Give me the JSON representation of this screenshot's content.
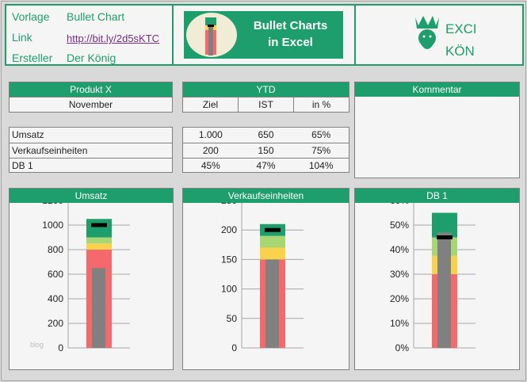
{
  "info": {
    "vorlage_label": "Vorlage",
    "vorlage_value": "Bullet Chart",
    "link_label": "Link",
    "link_value": "http://bit.ly/2d5sKTC",
    "ersteller_label": "Ersteller",
    "ersteller_value": "Der König"
  },
  "banner": {
    "line1": "Bullet Charts",
    "line2": "in Excel"
  },
  "logo": {
    "line1": "EXCEL",
    "line2": "KÖNIG"
  },
  "product": {
    "title": "Produkt X",
    "month": "November"
  },
  "ytd": {
    "title": "YTD",
    "columns": [
      "Ziel",
      "IST",
      "in %"
    ]
  },
  "comment": {
    "title": "Kommentar"
  },
  "rows": [
    {
      "label": "Umsatz",
      "ziel": "1.000",
      "ist": "650",
      "pct": "65%"
    },
    {
      "label": "Verkaufseinheiten",
      "ziel": "200",
      "ist": "150",
      "pct": "75%"
    },
    {
      "label": "DB 1",
      "ziel": "45%",
      "ist": "47%",
      "pct": "104%"
    }
  ],
  "watermark": "blog",
  "colors": {
    "accent": "#1e9e6c",
    "red": "#f4696b",
    "yellow": "#f9d14a",
    "lightgreen": "#a8d672",
    "green": "#1e9e6c",
    "actual": "#808080",
    "target": "#000000"
  },
  "chart_data": [
    {
      "type": "bar",
      "title": "Umsatz",
      "ylim": [
        0,
        1200
      ],
      "ticks": [
        0,
        200,
        400,
        600,
        800,
        1000,
        1200
      ],
      "tick_labels": [
        "0",
        "200",
        "400",
        "600",
        "800",
        "1000",
        "1200"
      ],
      "bands": [
        800,
        850,
        900,
        1050
      ],
      "actual": 650,
      "target": 1000,
      "grid": true
    },
    {
      "type": "bar",
      "title": "Verkaufseinheiten",
      "ylim": [
        0,
        250
      ],
      "ticks": [
        0,
        50,
        100,
        150,
        200,
        250
      ],
      "tick_labels": [
        "0",
        "50",
        "100",
        "150",
        "200",
        "250"
      ],
      "bands": [
        150,
        170,
        190,
        210
      ],
      "actual": 150,
      "target": 200,
      "grid": true
    },
    {
      "type": "bar",
      "title": "DB 1",
      "ylim": [
        0,
        60
      ],
      "ticks": [
        0,
        10,
        20,
        30,
        40,
        50,
        60
      ],
      "tick_labels": [
        "0%",
        "10%",
        "20%",
        "30%",
        "40%",
        "50%",
        "60%"
      ],
      "bands": [
        30,
        37.5,
        45,
        55
      ],
      "actual": 47,
      "target": 45,
      "grid": true
    }
  ]
}
